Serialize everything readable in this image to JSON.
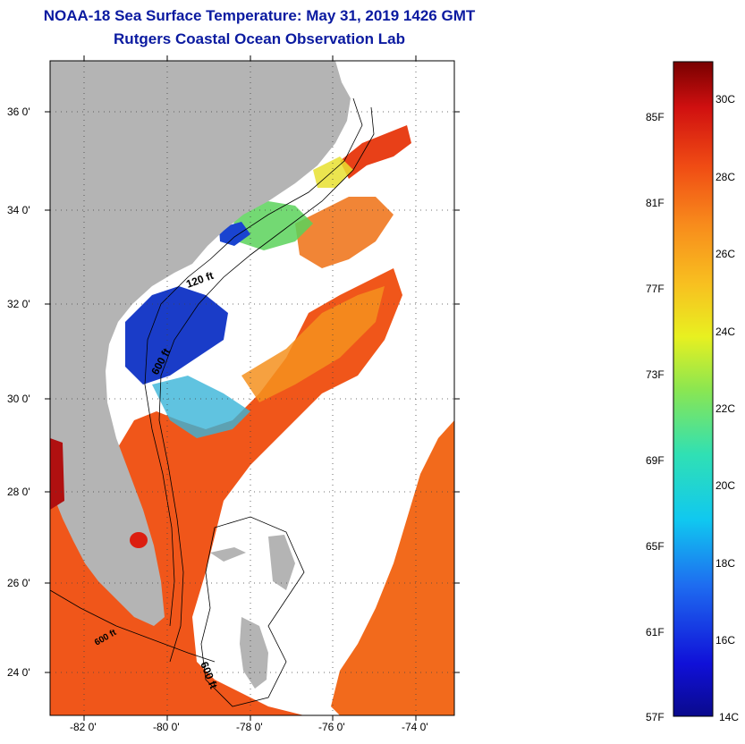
{
  "title": {
    "line1": "NOAA-18 Sea Surface Temperature:  May 31, 2019 1426 GMT",
    "line2": "Rutgers Coastal Ocean Observation Lab"
  },
  "map": {
    "lat_ticks": [
      "36 0'",
      "34 0'",
      "32 0'",
      "30 0'",
      "28 0'",
      "26 0'",
      "24 0'"
    ],
    "lon_ticks": [
      "-82 0'",
      "-80 0'",
      "-78 0'",
      "-76 0'",
      "-74 0'"
    ],
    "contour_labels": [
      "120 ft",
      "600 ft",
      "600 ft",
      "600 ft"
    ],
    "colors": {
      "land": "#b4b4b4",
      "cloud": "#ffffff",
      "warm": "#f05a18",
      "cool": "#1a3cc8"
    }
  },
  "colorbar": {
    "fahrenheit": [
      "85F",
      "81F",
      "77F",
      "73F",
      "69F",
      "65F",
      "61F",
      "57F"
    ],
    "celsius": [
      "30C",
      "28C",
      "26C",
      "24C",
      "22C",
      "20C",
      "18C",
      "16C",
      "14C"
    ]
  }
}
